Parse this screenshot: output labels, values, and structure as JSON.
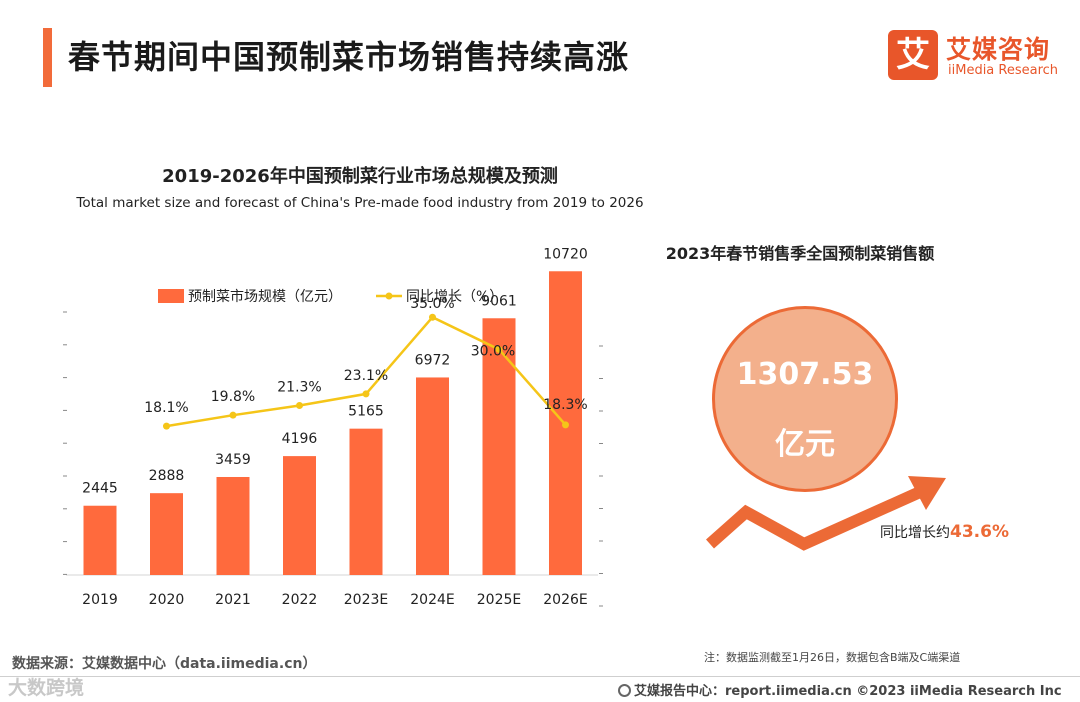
{
  "header": {
    "title": "春节期间中国预制菜市场销售持续高涨"
  },
  "logo": {
    "mark": "艾",
    "name_cn": "艾媒咨询",
    "name_en": "iiMedia Research"
  },
  "colors": {
    "accent": "#f26b3a",
    "bar": "#ff6a3d",
    "line": "#f5c518",
    "circle": "#f3b08c"
  },
  "chart_data": {
    "type": "bar",
    "title": "2019-2026年中国预制菜行业市场总规模及预测",
    "subtitle": "Total market size and forecast of China's Pre-made food industry from 2019 to 2026",
    "categories": [
      "2019",
      "2020",
      "2021",
      "2022",
      "2023E",
      "2024E",
      "2025E",
      "2026E"
    ],
    "series": [
      {
        "name": "预制菜市场规模（亿元）",
        "type": "bar",
        "axis": "left",
        "values": [
          2445,
          2888,
          3459,
          4196,
          5165,
          6972,
          9061,
          10720
        ],
        "labels": [
          "2445",
          "2888",
          "3459",
          "4196",
          "5165",
          "6972",
          "9061",
          "10720"
        ]
      },
      {
        "name": "同比增长（%）",
        "type": "line",
        "axis": "right",
        "values": [
          null,
          18.1,
          19.8,
          21.3,
          23.1,
          35.0,
          30.0,
          18.3
        ],
        "labels": [
          "",
          "18.1%",
          "19.8%",
          "21.3%",
          "23.1%",
          "35.0%",
          "30.0%",
          "18.3%"
        ]
      }
    ],
    "ylim_left": [
      0,
      12000
    ],
    "ylim_right": [
      -5,
      40
    ],
    "legend": "top-center",
    "grid": false
  },
  "right_panel": {
    "title": "2023年春节销售季全国预制菜销售额",
    "value": "1307.53",
    "unit": "亿元",
    "growth_label": "同比增长约",
    "growth_value": "43.6%"
  },
  "footer": {
    "source": "数据来源：艾媒数据中心（data.iimedia.cn）",
    "note": "注：数据监测截至1月26日，数据包含B端及C端渠道",
    "site": "艾媒报告中心：report.iimedia.cn  ©2023  iiMedia Research  Inc",
    "watermark": "大数跨境"
  }
}
